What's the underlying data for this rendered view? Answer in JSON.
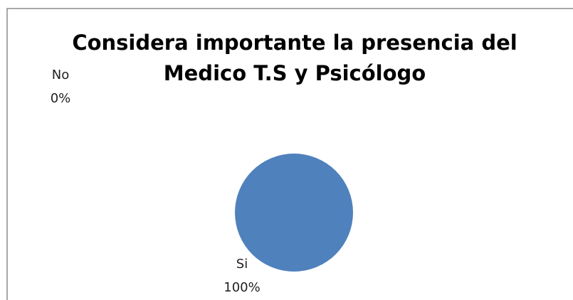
{
  "chart_data": {
    "type": "pie",
    "title": [
      "Considera importante la presencia del",
      "Medico T.S  y Psicólogo"
    ],
    "categories": [
      "Si",
      "No"
    ],
    "values": [
      100,
      0
    ],
    "value_labels": [
      "100%",
      "0%"
    ],
    "colors": [
      "#4f81bd",
      "#c0504d"
    ]
  }
}
